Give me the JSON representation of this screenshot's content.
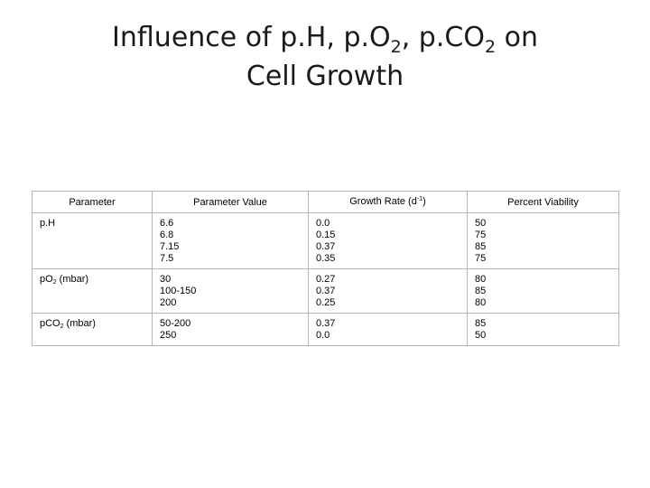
{
  "slide": {
    "title_line1_a": "Influence of p.H, p.O",
    "title_sub1": "2",
    "title_line1_b": ", p.CO",
    "title_sub2": "2",
    "title_line1_c": " on",
    "title_line2": "Cell Growth"
  },
  "table": {
    "headers": {
      "parameter": "Parameter",
      "parameter_value": "Parameter Value",
      "growth_rate": "Growth Rate (d",
      "growth_rate_sup": "-1",
      "growth_rate_end": ")",
      "percent_viability": "Percent Viability"
    },
    "rows": [
      {
        "param": "p.H",
        "values": [
          "6.6",
          "6.8",
          "7.15",
          "7.5"
        ],
        "growth": [
          "0.0",
          "0.15",
          "0.37",
          "0.35"
        ],
        "viability": [
          "50",
          "75",
          "85",
          "75"
        ]
      },
      {
        "param_a": "pO",
        "param_sub": "2",
        "param_b": " (mbar)",
        "values": [
          "30",
          "100-150",
          "200"
        ],
        "growth": [
          "0.27",
          "0.37",
          "0.25"
        ],
        "viability": [
          "80",
          "85",
          "80"
        ]
      },
      {
        "param_a": "pCO",
        "param_sub": "2",
        "param_b": " (mbar)",
        "values": [
          "50-200",
          "250"
        ],
        "growth": [
          "0.37",
          "0.0"
        ],
        "viability": [
          "85",
          "50"
        ]
      }
    ]
  }
}
